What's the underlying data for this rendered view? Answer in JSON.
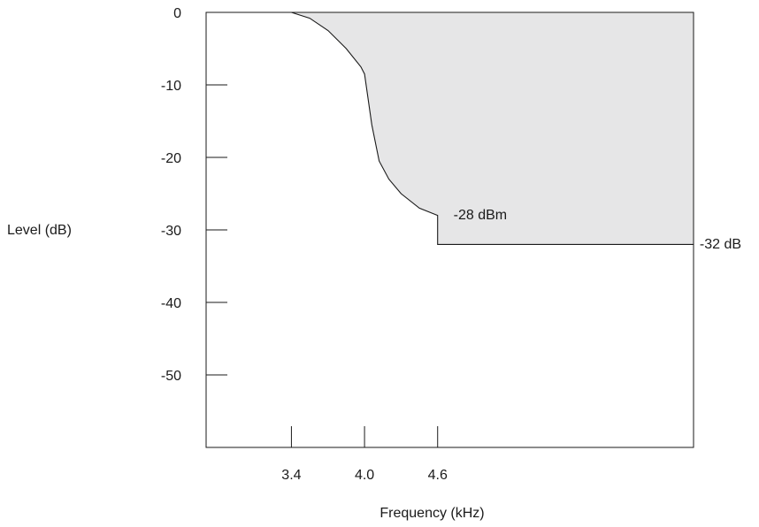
{
  "chart_data": {
    "type": "area",
    "title": "",
    "xlabel": "Frequency (kHz)",
    "ylabel": "Level (dB)",
    "xlim": [
      2.7,
      6.7
    ],
    "ylim": [
      -60,
      0
    ],
    "x_ticks": [
      {
        "value": 3.4,
        "label": "3.4"
      },
      {
        "value": 4.0,
        "label": "4.0"
      },
      {
        "value": 4.6,
        "label": "4.6"
      }
    ],
    "y_ticks": [
      {
        "value": 0,
        "label": "0"
      },
      {
        "value": -10,
        "label": "-10"
      },
      {
        "value": -20,
        "label": "-20"
      },
      {
        "value": -30,
        "label": "-30"
      },
      {
        "value": -40,
        "label": "-40"
      },
      {
        "value": -50,
        "label": "-50"
      }
    ],
    "grid": false,
    "legend": "none",
    "fill_color": "#e6e6e7",
    "line_color": "#1a1a1a",
    "boundary": {
      "x": [
        3.4,
        3.55,
        3.7,
        3.85,
        3.97,
        4.0,
        4.06,
        4.12,
        4.2,
        4.3,
        4.45,
        4.6,
        4.6,
        6.7
      ],
      "y": [
        0,
        -0.8,
        -2.5,
        -5.0,
        -7.5,
        -8.5,
        -15.5,
        -20.5,
        -23.0,
        -25.0,
        -27.0,
        -28.0,
        -32.0,
        -32.0
      ]
    },
    "annotations": [
      {
        "text": "-28 dBm",
        "x": 4.73,
        "y": -27.8
      },
      {
        "text": "-32 dB",
        "x": 6.75,
        "y": -31.8
      }
    ]
  }
}
